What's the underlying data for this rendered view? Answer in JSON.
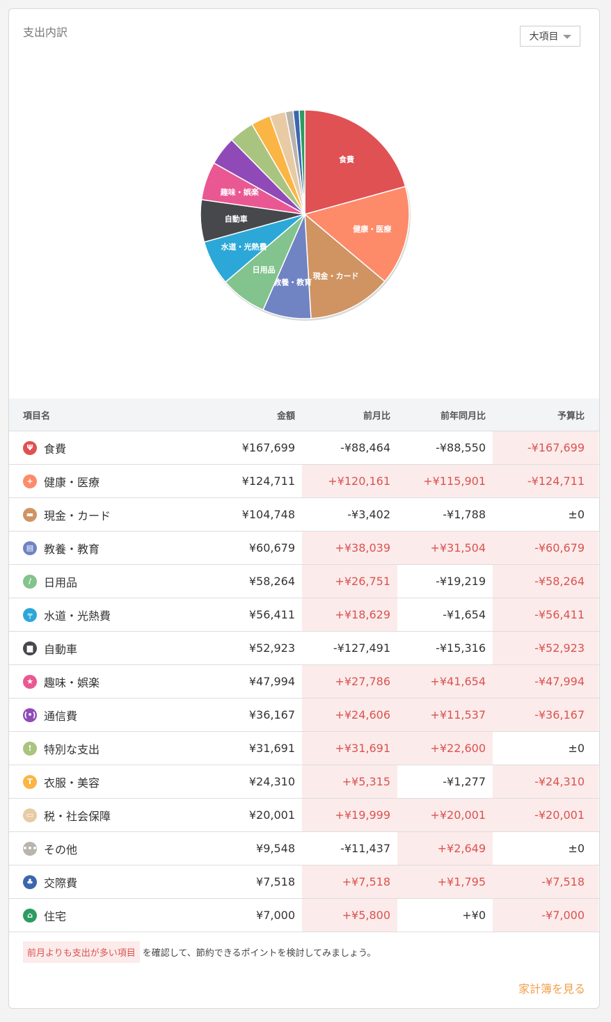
{
  "card": {
    "title": "支出内訳",
    "dropdown_label": "大項目"
  },
  "table": {
    "headers": {
      "name": "項目名",
      "amount": "金額",
      "mom": "前月比",
      "yoy": "前年同月比",
      "budget": "予算比"
    },
    "rows": [
      {
        "name": "食費",
        "amount": "¥167,699",
        "mom": "-¥88,464",
        "yoy": "-¥88,550",
        "budget": "-¥167,699",
        "mom_hl": false,
        "yoy_hl": false,
        "bud_hl": true,
        "color": "#e05154",
        "icon": "fork-knife-icon",
        "glyph": "Ψ"
      },
      {
        "name": "健康・医療",
        "amount": "¥124,711",
        "mom": "+¥120,161",
        "yoy": "+¥115,901",
        "budget": "-¥124,711",
        "mom_hl": true,
        "yoy_hl": true,
        "bud_hl": true,
        "color": "#fd8b6a",
        "icon": "medical-cross-icon",
        "glyph": "+"
      },
      {
        "name": "現金・カード",
        "amount": "¥104,748",
        "mom": "-¥3,402",
        "yoy": "-¥1,788",
        "budget": "±0",
        "mom_hl": false,
        "yoy_hl": false,
        "bud_hl": false,
        "color": "#cf9462",
        "icon": "wallet-icon",
        "glyph": "▬"
      },
      {
        "name": "教養・教育",
        "amount": "¥60,679",
        "mom": "+¥38,039",
        "yoy": "+¥31,504",
        "budget": "-¥60,679",
        "mom_hl": true,
        "yoy_hl": true,
        "bud_hl": true,
        "color": "#7083c3",
        "icon": "book-icon",
        "glyph": "▤"
      },
      {
        "name": "日用品",
        "amount": "¥58,264",
        "mom": "+¥26,751",
        "yoy": "-¥19,219",
        "budget": "-¥58,264",
        "mom_hl": true,
        "yoy_hl": false,
        "bud_hl": true,
        "color": "#83c38e",
        "icon": "toothbrush-icon",
        "glyph": "/"
      },
      {
        "name": "水道・光熱費",
        "amount": "¥56,411",
        "mom": "+¥18,629",
        "yoy": "-¥1,654",
        "budget": "-¥56,411",
        "mom_hl": true,
        "yoy_hl": false,
        "bud_hl": true,
        "color": "#2ba8d8",
        "icon": "faucet-icon",
        "glyph": "╤"
      },
      {
        "name": "自動車",
        "amount": "¥52,923",
        "mom": "-¥127,491",
        "yoy": "-¥15,316",
        "budget": "-¥52,923",
        "mom_hl": false,
        "yoy_hl": false,
        "bud_hl": true,
        "color": "#47484c",
        "icon": "car-icon",
        "glyph": "▆"
      },
      {
        "name": "趣味・娯楽",
        "amount": "¥47,994",
        "mom": "+¥27,786",
        "yoy": "+¥41,654",
        "budget": "-¥47,994",
        "mom_hl": true,
        "yoy_hl": true,
        "bud_hl": true,
        "color": "#ea5893",
        "icon": "star-icon",
        "glyph": "★"
      },
      {
        "name": "通信費",
        "amount": "¥36,167",
        "mom": "+¥24,606",
        "yoy": "+¥11,537",
        "budget": "-¥36,167",
        "mom_hl": true,
        "yoy_hl": true,
        "bud_hl": true,
        "color": "#8f4ab8",
        "icon": "antenna-icon",
        "glyph": "((•))"
      },
      {
        "name": "特別な支出",
        "amount": "¥31,691",
        "mom": "+¥31,691",
        "yoy": "+¥22,600",
        "budget": "±0",
        "mom_hl": true,
        "yoy_hl": true,
        "bud_hl": false,
        "color": "#a9c47f",
        "icon": "exclamation-icon",
        "glyph": "!"
      },
      {
        "name": "衣服・美容",
        "amount": "¥24,310",
        "mom": "+¥5,315",
        "yoy": "-¥1,277",
        "budget": "-¥24,310",
        "mom_hl": true,
        "yoy_hl": false,
        "bud_hl": true,
        "color": "#fbb545",
        "icon": "shirt-icon",
        "glyph": "T"
      },
      {
        "name": "税・社会保障",
        "amount": "¥20,001",
        "mom": "+¥19,999",
        "yoy": "+¥20,001",
        "budget": "-¥20,001",
        "mom_hl": true,
        "yoy_hl": true,
        "bud_hl": true,
        "color": "#e8cba4",
        "icon": "ticket-icon",
        "glyph": "▭"
      },
      {
        "name": "その他",
        "amount": "¥9,548",
        "mom": "-¥11,437",
        "yoy": "+¥2,649",
        "budget": "±0",
        "mom_hl": false,
        "yoy_hl": true,
        "bud_hl": false,
        "color": "#b9b4ae",
        "icon": "dots-icon",
        "glyph": "•••"
      },
      {
        "name": "交際費",
        "amount": "¥7,518",
        "mom": "+¥7,518",
        "yoy": "+¥1,795",
        "budget": "-¥7,518",
        "mom_hl": true,
        "yoy_hl": true,
        "bud_hl": true,
        "color": "#3c66ae",
        "icon": "people-icon",
        "glyph": "♣"
      },
      {
        "name": "住宅",
        "amount": "¥7,000",
        "mom": "+¥5,800",
        "yoy": "+¥0",
        "budget": "-¥7,000",
        "mom_hl": true,
        "yoy_hl": false,
        "bud_hl": true,
        "color": "#2d9b62",
        "icon": "house-icon",
        "glyph": "⌂"
      }
    ]
  },
  "chart_data": {
    "type": "pie",
    "slices": [
      {
        "label": "食費",
        "value": 167699,
        "color": "#e05154",
        "show_label": true
      },
      {
        "label": "健康・医療",
        "value": 124711,
        "color": "#fd8b6a",
        "show_label": true
      },
      {
        "label": "現金・カード",
        "value": 104748,
        "color": "#cf9462",
        "show_label": true
      },
      {
        "label": "教養・教育",
        "value": 60679,
        "color": "#7083c3",
        "show_label": true
      },
      {
        "label": "日用品",
        "value": 58264,
        "color": "#83c38e",
        "show_label": true
      },
      {
        "label": "水道・光熱費",
        "value": 56411,
        "color": "#2ba8d8",
        "show_label": true
      },
      {
        "label": "自動車",
        "value": 52923,
        "color": "#47484c",
        "show_label": true
      },
      {
        "label": "趣味・娯楽",
        "value": 47994,
        "color": "#ea5893",
        "show_label": true
      },
      {
        "label": "通信費",
        "value": 36167,
        "color": "#8f4ab8",
        "show_label": false
      },
      {
        "label": "特別な支出",
        "value": 31691,
        "color": "#a9c47f",
        "show_label": false
      },
      {
        "label": "衣服・美容",
        "value": 24310,
        "color": "#fbb545",
        "show_label": false
      },
      {
        "label": "税・社会保障",
        "value": 20001,
        "color": "#e8cba4",
        "show_label": false
      },
      {
        "label": "その他",
        "value": 9548,
        "color": "#b9b4ae",
        "show_label": false
      },
      {
        "label": "交際費",
        "value": 7518,
        "color": "#3c66ae",
        "show_label": false
      },
      {
        "label": "住宅",
        "value": 7000,
        "color": "#2d9b62",
        "show_label": false
      }
    ]
  },
  "footer": {
    "note_tag": "前月よりも支出が多い項目",
    "note_rest": "を確認して、節約できるポイントを検討してみましょう。",
    "link_label": "家計簿を見る"
  }
}
